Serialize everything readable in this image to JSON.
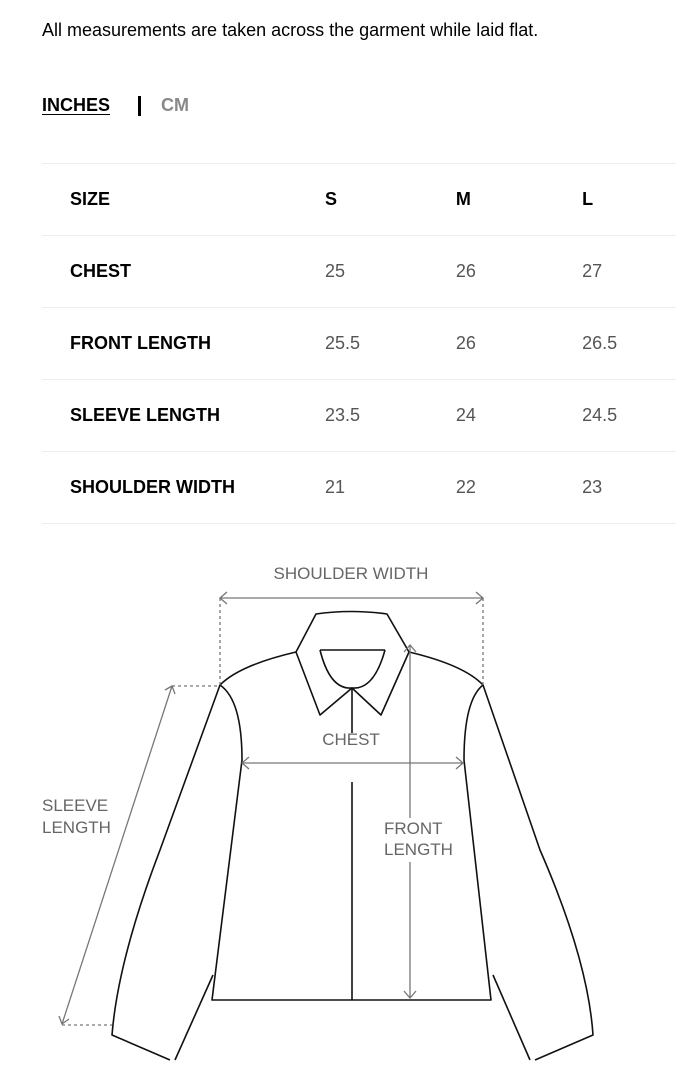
{
  "intro": "All measurements are taken across the garment while laid flat.",
  "units": {
    "active": "INCHES",
    "inactive": "CM"
  },
  "table": {
    "header": [
      "SIZE",
      "S",
      "M",
      "L"
    ],
    "rows": [
      [
        "CHEST",
        "25",
        "26",
        "27"
      ],
      [
        "FRONT LENGTH",
        "25.5",
        "26",
        "26.5"
      ],
      [
        "SLEEVE LENGTH",
        "23.5",
        "24",
        "24.5"
      ],
      [
        "SHOULDER WIDTH",
        "21",
        "22",
        "23"
      ]
    ]
  },
  "diagram": {
    "shoulder_width": "SHOULDER WIDTH",
    "chest": "CHEST",
    "sleeve_length": [
      "SLEEVE",
      "LENGTH"
    ],
    "front_length": [
      "FRONT",
      "LENGTH"
    ]
  }
}
